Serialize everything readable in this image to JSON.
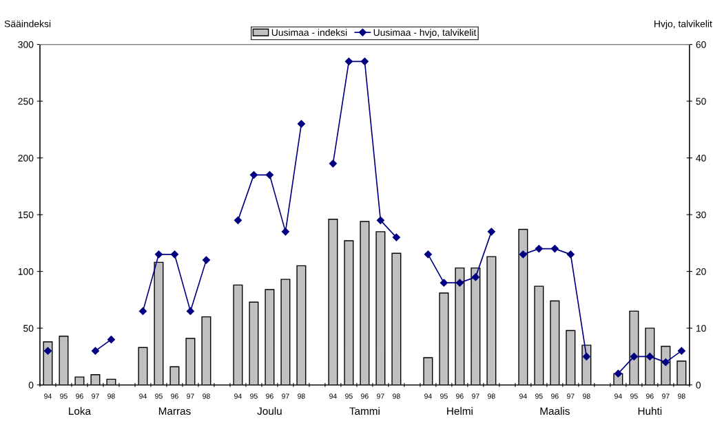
{
  "chart_data": {
    "type": "bar",
    "categories": [
      "94",
      "95",
      "96",
      "97",
      "98",
      null,
      "94",
      "95",
      "96",
      "97",
      "98",
      null,
      "94",
      "95",
      "96",
      "97",
      "98",
      null,
      "94",
      "95",
      "96",
      "97",
      "98",
      null,
      "94",
      "95",
      "96",
      "97",
      "98",
      null,
      "94",
      "95",
      "96",
      "97",
      "98",
      null,
      "94",
      "95",
      "96",
      "97",
      "98"
    ],
    "series": [
      {
        "name": "Uusimaa - indeksi",
        "color": "#c0c0c0",
        "values": [
          38,
          43,
          7,
          9,
          5,
          null,
          33,
          108,
          16,
          41,
          60,
          null,
          88,
          73,
          84,
          93,
          105,
          null,
          146,
          127,
          144,
          135,
          116,
          null,
          24,
          81,
          103,
          103,
          113,
          null,
          137,
          87,
          74,
          48,
          35,
          null,
          10,
          65,
          50,
          34,
          21
        ]
      },
      {
        "name": "Uusimaa - hvjo, talvikelit",
        "type": "line",
        "axis": "y2",
        "color": "#000080",
        "marker": "diamond",
        "values": [
          6,
          null,
          null,
          6,
          8,
          null,
          13,
          23,
          23,
          13,
          22,
          null,
          29,
          37,
          37,
          27,
          46,
          null,
          39,
          57,
          57,
          29,
          26,
          null,
          23,
          18,
          18,
          19,
          27,
          null,
          23,
          24,
          24,
          23,
          5,
          null,
          2,
          5,
          5,
          4,
          6
        ]
      }
    ],
    "ylabel": "Sääindeksi",
    "y2label": "Hvjo, talvikelit",
    "ylim": [
      0,
      300
    ],
    "yticks": [
      0,
      50,
      100,
      150,
      200,
      250,
      300
    ],
    "y2lim": [
      0,
      60
    ],
    "y2ticks": [
      0,
      10,
      20,
      30,
      40,
      50,
      60
    ],
    "annotations": [
      "Loka",
      "Marras",
      "Joulu",
      "Tammi",
      "Helmi",
      "Maalis",
      "Huhti"
    ],
    "legend": "top",
    "grid": false
  }
}
